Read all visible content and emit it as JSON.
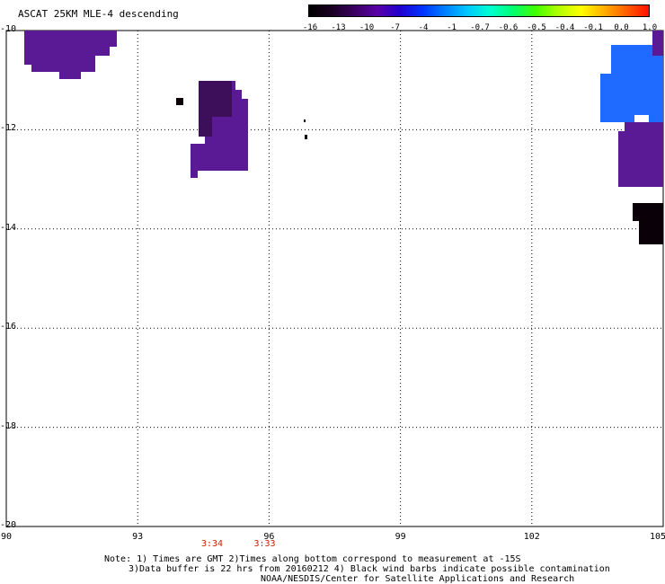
{
  "title": "ASCAT 25KM MLE-4 descending",
  "colorbar": {
    "colors": [
      "#000000",
      "#1a0022",
      "#3a0060",
      "#5a00a8",
      "#2200cc",
      "#0033ff",
      "#0080ff",
      "#00c8ff",
      "#00ffd0",
      "#00ff70",
      "#40ff00",
      "#b0ff00",
      "#ffff00",
      "#ffb000",
      "#ff6000",
      "#ff1000"
    ],
    "labels": [
      "-16",
      "-13",
      "-10",
      "-7",
      "-4",
      "-1",
      "-0.7",
      "-0.6",
      "-0.5",
      "-0.4",
      "-0.1",
      "0.0",
      "1.0"
    ]
  },
  "map": {
    "lat_labels": [
      "-10",
      "-12",
      "-14",
      "-16",
      "-18",
      "-20"
    ],
    "lon_labels": [
      "90",
      "93",
      "96",
      "99",
      "102",
      "105"
    ],
    "lat_range": [
      -20,
      -10
    ],
    "lon_range": [
      90,
      105
    ],
    "grid": "dotted",
    "time_labels": [
      {
        "text": "3:34",
        "lon": 94.7
      },
      {
        "text": "3:33",
        "lon": 95.9
      }
    ],
    "colors": {
      "purple": "#5a1a96",
      "dark_purple": "#3d0f5a",
      "black": "#0a0008",
      "blue": "#1f6bff"
    }
  },
  "notes": [
    "Note: 1) Times are GMT 2)Times along bottom correspond to measurement at -15S",
    "3)Data buffer is 22 hrs from 20160212 4) Black wind barbs indicate possible contamination",
    "NOAA/NESDIS/Center for Satellite Applications and Research"
  ]
}
